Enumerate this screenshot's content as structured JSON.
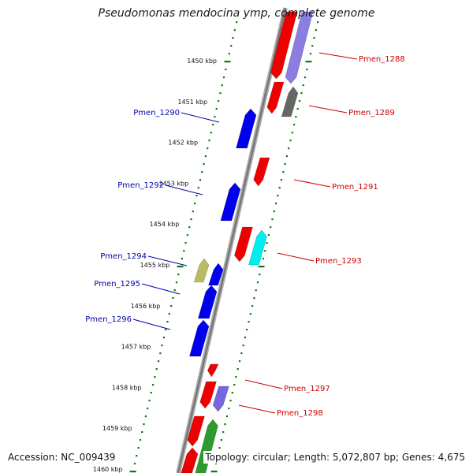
{
  "title": "Pseudomonas mendocina ymp, complete genome",
  "footer": {
    "accession": "Accession: NC_009439",
    "topology": "Topology: circular; Length: 5,072,807 bp; Genes: 4,675"
  },
  "colors": {
    "backbone": "#888888",
    "tick": "#0a7a0a",
    "forward_label": "#cc0000",
    "reverse_label": "#0000aa"
  },
  "kbp_labels": [
    "1450 kbp",
    "1451 kbp",
    "1452 kbp",
    "1453 kbp",
    "1454 kbp",
    "1455 kbp",
    "1456 kbp",
    "1457 kbp",
    "1458 kbp",
    "1459 kbp",
    "1460 kbp"
  ],
  "genes": [
    {
      "name": "Pmen_1288",
      "side": "right",
      "color": "#ee0000"
    },
    {
      "name": "Pmen_1289",
      "side": "right",
      "color": "#ee0000"
    },
    {
      "name": "Pmen_1290",
      "side": "left",
      "color": "#0000ee"
    },
    {
      "name": "Pmen_1291",
      "side": "right",
      "color": "#ee0000"
    },
    {
      "name": "Pmen_1292",
      "side": "left",
      "color": "#0000ee"
    },
    {
      "name": "Pmen_1293",
      "side": "right",
      "color": "#ee0000"
    },
    {
      "name": "Pmen_1294",
      "side": "left",
      "color": "#0000ee"
    },
    {
      "name": "Pmen_1295",
      "side": "left",
      "color": "#0000ee"
    },
    {
      "name": "Pmen_1296",
      "side": "left",
      "color": "#0000ee"
    },
    {
      "name": "Pmen_1297",
      "side": "right",
      "color": "#ee0000"
    },
    {
      "name": "Pmen_1298",
      "side": "right",
      "color": "#ee0000"
    }
  ]
}
